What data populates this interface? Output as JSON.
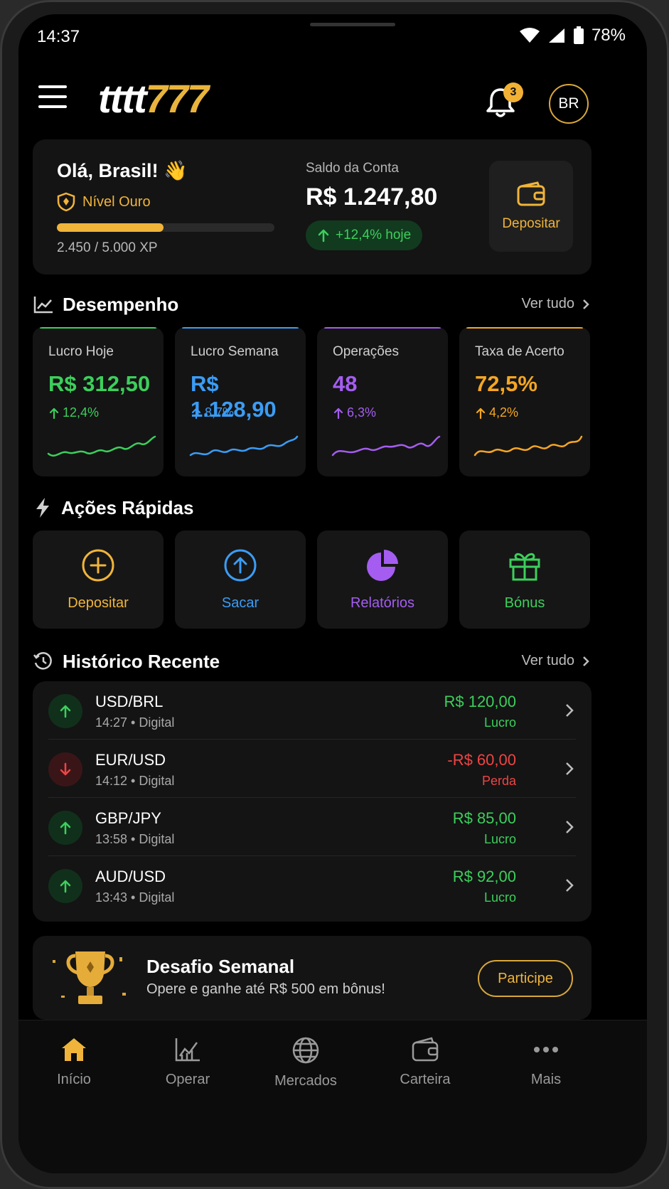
{
  "status_bar": {
    "time": "14:37",
    "battery": "78%"
  },
  "header": {
    "logo_part1": "tttt",
    "logo_part2": "777",
    "notification_count": "3",
    "avatar": "BR"
  },
  "account": {
    "greeting": "Olá, Brasil! 👋",
    "level": "Nível Ouro",
    "xp_text": "2.450 / 5.000 XP",
    "xp_progress": 0.49,
    "balance_label": "Saldo da Conta",
    "balance": "R$ 1.247,80",
    "balance_change": "+12,4% hoje",
    "deposit_label": "Depositar"
  },
  "performance": {
    "title": "Desempenho",
    "see_all": "Ver tudo",
    "cards": [
      {
        "label": "Lucro Hoje",
        "value": "R$ 312,50",
        "change": "12,4%",
        "color": "#3ccf5c"
      },
      {
        "label": "Lucro Semana",
        "value": "R$ 1.128,90",
        "change": "8,7%",
        "color": "#3b9cf5"
      },
      {
        "label": "Operações",
        "value": "48",
        "change": "6,3%",
        "color": "#a45df0"
      },
      {
        "label": "Taxa de Acerto",
        "value": "72,5%",
        "change": "4,2%",
        "color": "#f5a623"
      }
    ]
  },
  "quick_actions": {
    "title": "Ações Rápidas",
    "items": [
      {
        "label": "Depositar",
        "color": "#f0b43a",
        "icon": "plus-circle-icon"
      },
      {
        "label": "Sacar",
        "color": "#3b9cf5",
        "icon": "arrow-up-circle-icon"
      },
      {
        "label": "Relatórios",
        "color": "#a45df0",
        "icon": "pie-chart-icon"
      },
      {
        "label": "Bónus",
        "color": "#3ccf5c",
        "icon": "gift-icon"
      }
    ]
  },
  "history": {
    "title": "Histórico Recente",
    "see_all": "Ver tudo",
    "rows": [
      {
        "pair": "USD/BRL",
        "meta": "14:27 • Digital",
        "amount": "R$ 120,00",
        "status": "Lucro",
        "direction": "up"
      },
      {
        "pair": "EUR/USD",
        "meta": "14:12 • Digital",
        "amount": "-R$ 60,00",
        "status": "Perda",
        "direction": "down"
      },
      {
        "pair": "GBP/JPY",
        "meta": "13:58 • Digital",
        "amount": "R$ 85,00",
        "status": "Lucro",
        "direction": "up"
      },
      {
        "pair": "AUD/USD",
        "meta": "13:43 • Digital",
        "amount": "R$ 92,00",
        "status": "Lucro",
        "direction": "up"
      }
    ]
  },
  "challenge": {
    "title": "Desafio Semanal",
    "subtitle": "Opere e ganhe até R$ 500 em bônus!",
    "button": "Participe"
  },
  "bottom_nav": {
    "items": [
      {
        "label": "Início",
        "icon": "home-icon",
        "active": true
      },
      {
        "label": "Operar",
        "icon": "chart-icon",
        "active": false
      },
      {
        "label": "Mercados",
        "icon": "globe-icon",
        "active": false
      },
      {
        "label": "Carteira",
        "icon": "wallet-icon",
        "active": false
      },
      {
        "label": "Mais",
        "icon": "more-icon",
        "active": false
      }
    ]
  },
  "colors": {
    "gold": "#f0b43a",
    "green": "#3ccf5c",
    "red": "#ef4444",
    "blue": "#3b9cf5",
    "purple": "#a45df0",
    "orange": "#f5a623"
  }
}
